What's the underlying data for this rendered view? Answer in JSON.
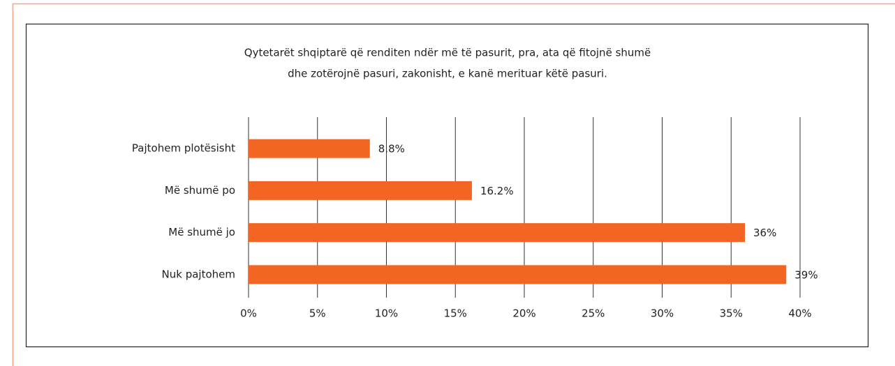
{
  "chart_data": {
    "type": "bar",
    "orientation": "horizontal",
    "title": [
      "Qytetarët shqiptarë që renditen ndër më të pasurit, pra, ata që fitojnë shumë",
      "dhe zotërojnë pasuri, zakonisht, e kanë merituar këtë pasuri."
    ],
    "categories": [
      "Pajtohem plotësisht",
      "Më shumë po",
      "Më shumë jo",
      "Nuk pajtohem"
    ],
    "values": [
      8.8,
      16.2,
      36,
      39
    ],
    "value_labels": [
      "8.8%",
      "16.2%",
      "36%",
      "39%"
    ],
    "color": "#f26522",
    "xlim": [
      0,
      40
    ],
    "xticks": [
      {
        "value": 0,
        "label": "0%"
      },
      {
        "value": 5,
        "label": "5%"
      },
      {
        "value": 10,
        "label": "10%"
      },
      {
        "value": 15,
        "label": "15%"
      },
      {
        "value": 20,
        "label": "20%"
      },
      {
        "value": 25,
        "label": "25%"
      },
      {
        "value": 30,
        "label": "30%"
      },
      {
        "value": 35,
        "label": "35%"
      },
      {
        "value": 40,
        "label": "40%"
      }
    ],
    "grid": true
  }
}
